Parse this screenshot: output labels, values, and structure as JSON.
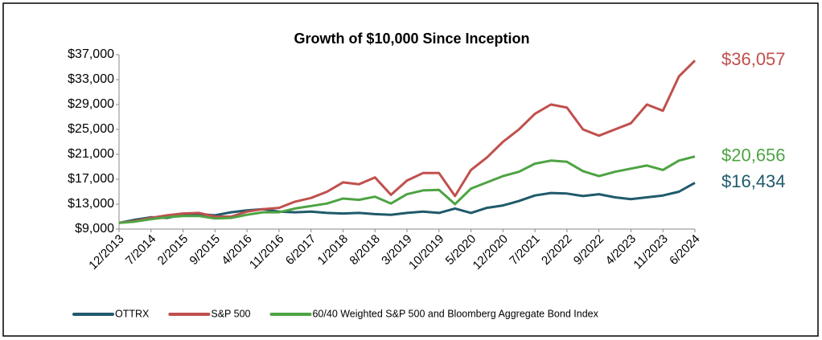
{
  "chart_data": {
    "type": "line",
    "title": "Growth of $10,000 Since Inception",
    "categories": [
      "12/2013",
      null,
      "7/2014",
      null,
      "2/2015",
      null,
      "9/2015",
      null,
      "4/2016",
      null,
      "11/2016",
      null,
      "6/2017",
      null,
      "1/2018",
      null,
      "8/2018",
      null,
      "3/2019",
      null,
      "10/2019",
      null,
      "5/2020",
      null,
      "12/2020",
      null,
      "7/2021",
      null,
      "2/2022",
      null,
      "9/2022",
      null,
      "4/2023",
      null,
      "11/2023",
      null,
      "6/2024"
    ],
    "series": [
      {
        "name": "OTTRX",
        "color": "#1f5a6b",
        "end_label": "$16,434",
        "values": [
          10000,
          10500,
          10900,
          10800,
          11300,
          11400,
          11200,
          11700,
          12000,
          12200,
          11800,
          11700,
          11800,
          11600,
          11500,
          11600,
          11400,
          11300,
          11600,
          11800,
          11600,
          12300,
          11600,
          12400,
          12800,
          13500,
          14400,
          14800,
          14700,
          14300,
          14600,
          14100,
          13800,
          14100,
          14400,
          15000,
          16434
        ]
      },
      {
        "name": "S&P 500",
        "color": "#c0504d",
        "end_label": "$36,057",
        "values": [
          10000,
          10300,
          10800,
          11200,
          11500,
          11600,
          11000,
          11000,
          11800,
          12200,
          12400,
          13400,
          14000,
          15000,
          16500,
          16200,
          17300,
          14500,
          16800,
          18000,
          18000,
          14300,
          18500,
          20500,
          23000,
          25000,
          27500,
          29000,
          28500,
          25000,
          24000,
          25000,
          26000,
          29000,
          28000,
          33500,
          36057
        ]
      },
      {
        "name": "60/40 Weighted S&P 500 and Bloomberg Aggregate Bond Index",
        "color": "#4ea343",
        "end_label": "$20,656",
        "values": [
          10000,
          10200,
          10600,
          10900,
          11100,
          11100,
          10700,
          10800,
          11300,
          11700,
          11700,
          12300,
          12700,
          13100,
          13900,
          13700,
          14200,
          13100,
          14600,
          15200,
          15300,
          13000,
          15500,
          16500,
          17500,
          18200,
          19500,
          20000,
          19800,
          18300,
          17500,
          18200,
          18700,
          19200,
          18500,
          20000,
          20656
        ]
      }
    ],
    "ylim": [
      9000,
      37000
    ],
    "yticks": [
      {
        "value": 9000,
        "label": "$9,000"
      },
      {
        "value": 13000,
        "label": "$13,000"
      },
      {
        "value": 17000,
        "label": "$17,000"
      },
      {
        "value": 21000,
        "label": "$21,000"
      },
      {
        "value": 25000,
        "label": "$25,000"
      },
      {
        "value": 29000,
        "label": "$29,000"
      },
      {
        "value": 33000,
        "label": "$33,000"
      },
      {
        "value": 37000,
        "label": "$37,000"
      }
    ],
    "grid": false,
    "legend": "bottom"
  }
}
